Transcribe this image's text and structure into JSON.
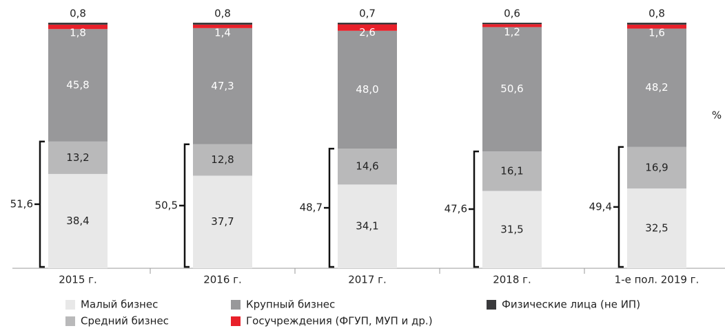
{
  "chart_data": {
    "type": "stacked_bar",
    "categories": [
      "2015 г.",
      "2016 г.",
      "2017 г.",
      "2018 г.",
      "1-е пол. 2019 г."
    ],
    "series": [
      {
        "name": "Малый бизнес",
        "color": "#e8e8e8",
        "values": [
          38.4,
          37.7,
          34.1,
          31.5,
          32.5
        ],
        "value_labels": [
          "38,4",
          "37,7",
          "34,1",
          "31,5",
          "32,5"
        ]
      },
      {
        "name": "Средний бизнес",
        "color": "#b9b9ba",
        "values": [
          13.2,
          12.8,
          14.6,
          16.1,
          16.9
        ],
        "value_labels": [
          "13,2",
          "12,8",
          "14,6",
          "16,1",
          "16,9"
        ]
      },
      {
        "name": "Крупный бизнес",
        "color": "#98989a",
        "values": [
          45.8,
          47.3,
          48.0,
          50.6,
          48.2
        ],
        "value_labels": [
          "45,8",
          "47,3",
          "48,0",
          "50,6",
          "48,2"
        ]
      },
      {
        "name": "Госучреждения (ФГУП,  МУП и др.)",
        "color": "#e8202a",
        "values": [
          1.8,
          1.4,
          2.6,
          1.2,
          1.6
        ],
        "value_labels": [
          "1,8",
          "1,4",
          "2,6",
          "1,2",
          "1,6"
        ]
      },
      {
        "name": "Физические лица (не ИП)",
        "color": "#3a3a3c",
        "values": [
          0.8,
          0.8,
          0.7,
          0.6,
          0.8
        ],
        "value_labels": [
          "0,8",
          "0,8",
          "0,7",
          "0,6",
          "0,8"
        ]
      }
    ],
    "brackets": {
      "values": [
        51.6,
        50.5,
        48.7,
        47.6,
        49.4
      ],
      "value_labels": [
        "51,6",
        "50,5",
        "48,7",
        "47,6",
        "49,4"
      ]
    },
    "unit_label": "%",
    "ylim": [
      0,
      100
    ]
  }
}
